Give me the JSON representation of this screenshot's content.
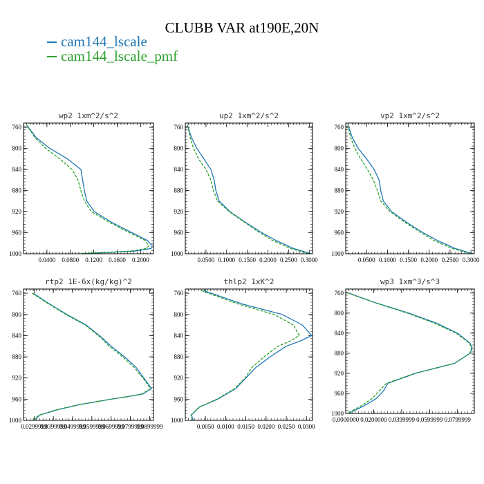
{
  "title": "CLUBB VAR at190E,20N",
  "colors": {
    "cam144_lscale": "#1f77b4",
    "cam144_lscale_pmf": "#2ca02c"
  },
  "legend": [
    {
      "label": "cam144_lscale",
      "color": "#1f77b4",
      "dash": "solid"
    },
    {
      "label": "cam144_lscale_pmf",
      "color": "#2ca02c",
      "dash": "dashed"
    }
  ],
  "chart_data": [
    {
      "type": "line",
      "title": "wp2  1xm^2/s^2",
      "xlim": [
        0.0,
        0.222
      ],
      "ylim": [
        1000,
        752
      ],
      "y_inverted": true,
      "xticks": [
        "0.0400",
        "0.0800",
        "0.1200",
        "0.1600",
        "0.2000"
      ],
      "yticks": [
        "760",
        "800",
        "840",
        "880",
        "920",
        "960",
        "1000"
      ],
      "series": [
        {
          "name": "cam144_lscale",
          "y": [
            755,
            780,
            800,
            820,
            840,
            860,
            880,
            900,
            920,
            940,
            960,
            975,
            985,
            990,
            995,
            1000
          ],
          "x": [
            0.005,
            0.022,
            0.045,
            0.075,
            0.098,
            0.101,
            0.104,
            0.108,
            0.121,
            0.15,
            0.185,
            0.212,
            0.22,
            0.218,
            0.19,
            0.1
          ]
        },
        {
          "name": "cam144_lscale_pmf",
          "y": [
            755,
            780,
            800,
            820,
            840,
            860,
            880,
            900,
            920,
            940,
            960,
            975,
            985,
            990,
            995,
            1000
          ],
          "x": [
            0.005,
            0.02,
            0.038,
            0.062,
            0.083,
            0.093,
            0.098,
            0.104,
            0.116,
            0.146,
            0.181,
            0.208,
            0.214,
            0.21,
            0.182,
            0.095
          ]
        }
      ]
    },
    {
      "type": "line",
      "title": "up2  1xm^2/s^2",
      "xlim": [
        0.0,
        0.308
      ],
      "ylim": [
        1000,
        752
      ],
      "y_inverted": true,
      "xticks": [
        "0.0500",
        "0.1000",
        "0.1500",
        "0.2000",
        "0.2500",
        "0.3000"
      ],
      "yticks": [
        "760",
        "800",
        "840",
        "880",
        "920",
        "960",
        "1000"
      ],
      "series": [
        {
          "name": "cam144_lscale",
          "y": [
            755,
            780,
            800,
            820,
            840,
            860,
            880,
            900,
            920,
            940,
            960,
            975,
            990,
            1000
          ],
          "x": [
            0.005,
            0.015,
            0.028,
            0.045,
            0.062,
            0.07,
            0.074,
            0.082,
            0.108,
            0.145,
            0.185,
            0.22,
            0.262,
            0.305
          ]
        },
        {
          "name": "cam144_lscale_pmf",
          "y": [
            755,
            780,
            800,
            820,
            840,
            860,
            880,
            900,
            920,
            940,
            960,
            975,
            990,
            1000
          ],
          "x": [
            0.005,
            0.012,
            0.02,
            0.032,
            0.05,
            0.062,
            0.068,
            0.078,
            0.106,
            0.143,
            0.18,
            0.212,
            0.255,
            0.3
          ]
        }
      ]
    },
    {
      "type": "line",
      "title": "vp2  1xm^2/s^2",
      "xlim": [
        0.0,
        0.308
      ],
      "ylim": [
        1000,
        752
      ],
      "y_inverted": true,
      "xticks": [
        "0.0500",
        "0.1000",
        "0.1500",
        "0.2000",
        "0.2500",
        "0.3000"
      ],
      "yticks": [
        "760",
        "800",
        "840",
        "880",
        "920",
        "960",
        "1000"
      ],
      "series": [
        {
          "name": "cam144_lscale",
          "y": [
            755,
            780,
            800,
            820,
            840,
            860,
            880,
            900,
            920,
            940,
            960,
            975,
            990,
            1000
          ],
          "x": [
            0.005,
            0.016,
            0.03,
            0.05,
            0.068,
            0.08,
            0.084,
            0.09,
            0.11,
            0.145,
            0.185,
            0.22,
            0.262,
            0.305
          ]
        },
        {
          "name": "cam144_lscale_pmf",
          "y": [
            755,
            780,
            800,
            820,
            840,
            860,
            880,
            900,
            920,
            940,
            960,
            975,
            990,
            1000
          ],
          "x": [
            0.005,
            0.012,
            0.022,
            0.036,
            0.052,
            0.066,
            0.076,
            0.084,
            0.106,
            0.141,
            0.18,
            0.212,
            0.255,
            0.3
          ]
        }
      ]
    },
    {
      "type": "line",
      "title": "rtp2  1E-6x(kg/kg)^2",
      "xlim": [
        0.0245,
        0.092
      ],
      "ylim": [
        1000,
        752
      ],
      "y_inverted": true,
      "xticks": [
        "0.0299999",
        "0.0399999",
        "0.0499999",
        "0.0599999",
        "0.0699999",
        "0.0799999",
        "0.0899999"
      ],
      "yticks": [
        "760",
        "800",
        "840",
        "880",
        "920",
        "960",
        "1000"
      ],
      "series": [
        {
          "name": "cam144_lscale",
          "y": [
            760,
            780,
            800,
            820,
            840,
            860,
            880,
            900,
            920,
            940,
            950,
            955,
            960,
            970,
            980,
            990,
            1000
          ],
          "x": [
            0.0295,
            0.038,
            0.047,
            0.057,
            0.064,
            0.07,
            0.077,
            0.083,
            0.087,
            0.091,
            0.0865,
            0.079,
            0.07,
            0.054,
            0.042,
            0.033,
            0.03
          ]
        },
        {
          "name": "cam144_lscale_pmf",
          "y": [
            760,
            780,
            800,
            820,
            840,
            860,
            880,
            900,
            920,
            940,
            950,
            955,
            960,
            970,
            980,
            990,
            1000
          ],
          "x": [
            0.029,
            0.0375,
            0.0465,
            0.0565,
            0.0635,
            0.069,
            0.076,
            0.082,
            0.0865,
            0.0905,
            0.086,
            0.0785,
            0.0695,
            0.0535,
            0.0415,
            0.0325,
            0.0295
          ]
        }
      ]
    },
    {
      "type": "line",
      "title": "thlp2  1xK^2",
      "xlim": [
        0.0,
        0.0315
      ],
      "ylim": [
        1000,
        752
      ],
      "y_inverted": true,
      "xticks": [
        "0.0050",
        "0.0100",
        "0.0150",
        "0.0200",
        "0.0250",
        "0.0300"
      ],
      "yticks": [
        "760",
        "800",
        "840",
        "880",
        "920",
        "960",
        "1000"
      ],
      "series": [
        {
          "name": "cam144_lscale",
          "y": [
            755,
            780,
            800,
            820,
            840,
            850,
            860,
            880,
            900,
            920,
            940,
            960,
            975,
            990,
            1000
          ],
          "x": [
            0.0045,
            0.014,
            0.024,
            0.029,
            0.0313,
            0.0285,
            0.025,
            0.021,
            0.0175,
            0.015,
            0.0125,
            0.008,
            0.0035,
            0.0015,
            0.002
          ]
        },
        {
          "name": "cam144_lscale_pmf",
          "y": [
            755,
            780,
            800,
            820,
            840,
            850,
            860,
            880,
            900,
            920,
            940,
            960,
            975,
            990,
            1000
          ],
          "x": [
            0.004,
            0.013,
            0.022,
            0.0268,
            0.0282,
            0.026,
            0.023,
            0.0195,
            0.0165,
            0.0148,
            0.0122,
            0.0078,
            0.0034,
            0.0014,
            0.0018
          ]
        }
      ]
    },
    {
      "type": "line",
      "title": "wp3  1xm^3/s^3",
      "xlim": [
        0.0,
        0.092
      ],
      "ylim": [
        1000,
        752
      ],
      "y_inverted": true,
      "xticks": [
        "0.0000000",
        "0.0200000",
        "0.0399999",
        "0.0599999",
        "0.0799999"
      ],
      "yticks": [
        "760",
        "800",
        "840",
        "880",
        "920",
        "960",
        "1000"
      ],
      "series": [
        {
          "name": "cam144_lscale",
          "y": [
            760,
            780,
            800,
            820,
            840,
            860,
            870,
            880,
            900,
            920,
            940,
            955,
            970,
            985,
            1000
          ],
          "x": [
            0.002,
            0.022,
            0.045,
            0.065,
            0.08,
            0.089,
            0.0905,
            0.089,
            0.078,
            0.05,
            0.03,
            0.027,
            0.022,
            0.013,
            0.002
          ]
        },
        {
          "name": "cam144_lscale_pmf",
          "y": [
            760,
            780,
            800,
            820,
            840,
            860,
            870,
            880,
            900,
            920,
            940,
            955,
            970,
            985,
            1000
          ],
          "x": [
            0.0015,
            0.0215,
            0.044,
            0.0635,
            0.079,
            0.0885,
            0.09,
            0.0888,
            0.0778,
            0.0495,
            0.029,
            0.024,
            0.019,
            0.011,
            0.001
          ]
        }
      ]
    }
  ]
}
